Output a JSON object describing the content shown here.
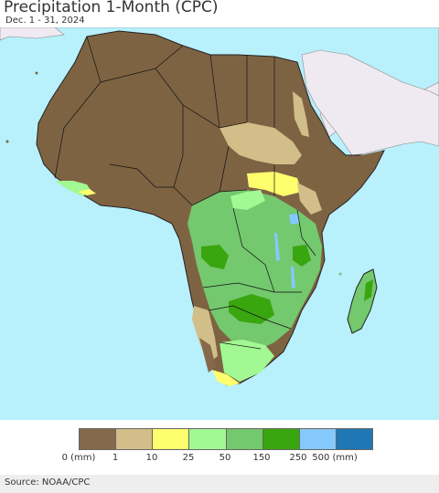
{
  "header": {
    "title": "Precipitation 1-Month (CPC)",
    "subtitle": "Dec. 1 - 31, 2024"
  },
  "map": {
    "ocean_color": "#b8f0fb",
    "outside_land_color": "#efeaf1",
    "border_color": "#222222"
  },
  "legend": {
    "colors": [
      "#86694a",
      "#d1be88",
      "#ffff6e",
      "#a2f892",
      "#74c86e",
      "#3aa60f",
      "#85c8fc",
      "#1f78b4"
    ],
    "labels": [
      "0 (mm)",
      "1",
      "10",
      "25",
      "50",
      "150",
      "250",
      "500 (mm)"
    ]
  },
  "footer": {
    "source": "Source: NOAA/CPC"
  }
}
